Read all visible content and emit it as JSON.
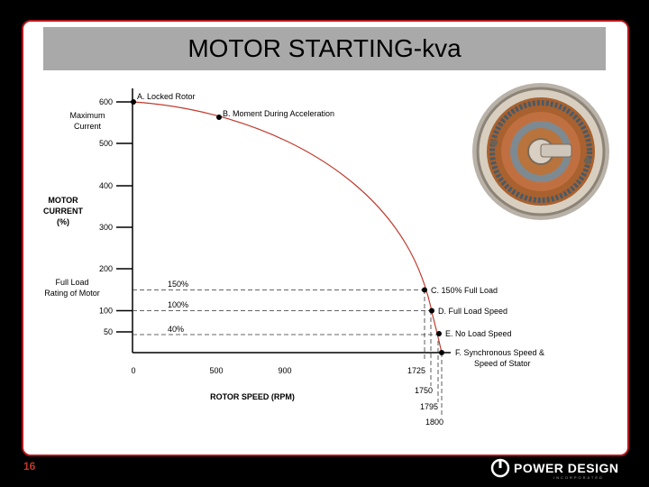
{
  "slide": {
    "title": "MOTOR STARTING-kva",
    "page_number": "16",
    "logo_text": "POWER DESIGN",
    "logo_sub": "INCORPORATED"
  },
  "chart_data": {
    "type": "line",
    "ylabel": "MOTOR CURRENT (%)",
    "xlabel": "ROTOR SPEED (RPM)",
    "yticks": [
      {
        "value": 600,
        "label": "600",
        "sub": "Maximum Current"
      },
      {
        "value": 500,
        "label": "500"
      },
      {
        "value": 400,
        "label": "400"
      },
      {
        "value": 300,
        "label": "300"
      },
      {
        "value": 200,
        "label": "200"
      },
      {
        "value": 100,
        "label": "100"
      },
      {
        "value": 50,
        "label": "50"
      }
    ],
    "full_load_label": "Full Load Rating of Motor",
    "xticks": [
      {
        "value": 0,
        "label": "0"
      },
      {
        "value": 500,
        "label": "500"
      },
      {
        "value": 900,
        "label": "900"
      },
      {
        "value": 1725,
        "label": "1725"
      }
    ],
    "xticks_below": [
      {
        "value": 1750,
        "label": "1750"
      },
      {
        "value": 1795,
        "label": "1795"
      },
      {
        "value": 1800,
        "label": "1800"
      }
    ],
    "points": [
      {
        "rpm": 0,
        "current": 600,
        "label": "A. Locked Rotor"
      },
      {
        "rpm": 500,
        "current": 560,
        "label": "B. Moment During Acceleration"
      },
      {
        "rpm": 1725,
        "current": 150,
        "label": "C. 150% Full Load"
      },
      {
        "rpm": 1750,
        "current": 100,
        "label": "D. Full Load Speed"
      },
      {
        "rpm": 1795,
        "current": 45,
        "label": "E. No Load Speed"
      },
      {
        "rpm": 1800,
        "current": 0,
        "label": "F. Synchronous Speed & Speed of Stator"
      }
    ],
    "reference_lines": [
      {
        "current": 150,
        "label": "150%"
      },
      {
        "current": 100,
        "label": "100%"
      },
      {
        "current": 40,
        "label": "40%"
      }
    ]
  }
}
